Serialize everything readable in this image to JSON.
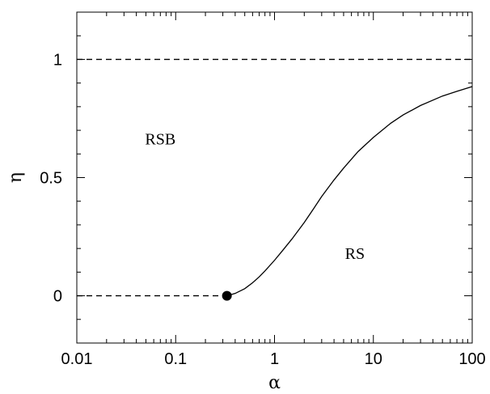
{
  "chart_data": {
    "type": "line",
    "title": "",
    "xlabel": "α",
    "ylabel": "η",
    "xscale": "log",
    "xlim": [
      0.01,
      100
    ],
    "ylim": [
      -0.2,
      1.2
    ],
    "grid": false,
    "xticks": [
      {
        "value": 0.01,
        "label": "0.01"
      },
      {
        "value": 0.1,
        "label": "0.1"
      },
      {
        "value": 1,
        "label": "1"
      },
      {
        "value": 10,
        "label": "10"
      },
      {
        "value": 100,
        "label": "100"
      }
    ],
    "yticks": [
      {
        "value": 0,
        "label": "0"
      },
      {
        "value": 0.5,
        "label": "0.5"
      },
      {
        "value": 1,
        "label": "1"
      }
    ],
    "series": [
      {
        "style": "solid",
        "x": [
          0.33,
          0.4,
          0.5,
          0.6,
          0.7,
          0.8,
          1,
          1.2,
          1.5,
          2,
          2.5,
          3,
          4,
          5,
          7,
          10,
          15,
          20,
          30,
          50,
          70,
          100
        ],
        "y": [
          0,
          0.01,
          0.03,
          0.055,
          0.08,
          0.105,
          0.15,
          0.19,
          0.24,
          0.31,
          0.37,
          0.42,
          0.49,
          0.54,
          0.61,
          0.67,
          0.73,
          0.765,
          0.805,
          0.845,
          0.865,
          0.885
        ]
      },
      {
        "style": "dashed",
        "x": [
          0.01,
          0.33
        ],
        "y": [
          0,
          0
        ]
      },
      {
        "style": "dashed",
        "x": [
          0.01,
          100
        ],
        "y": [
          1,
          1
        ]
      }
    ],
    "points": [
      {
        "x": 0.33,
        "y": 0,
        "marker": "filled-circle"
      }
    ],
    "annotations": [
      {
        "text": "RSB",
        "x": 0.07,
        "y": 0.665
      },
      {
        "text": "RS",
        "x": 6.5,
        "y": 0.18
      }
    ]
  }
}
